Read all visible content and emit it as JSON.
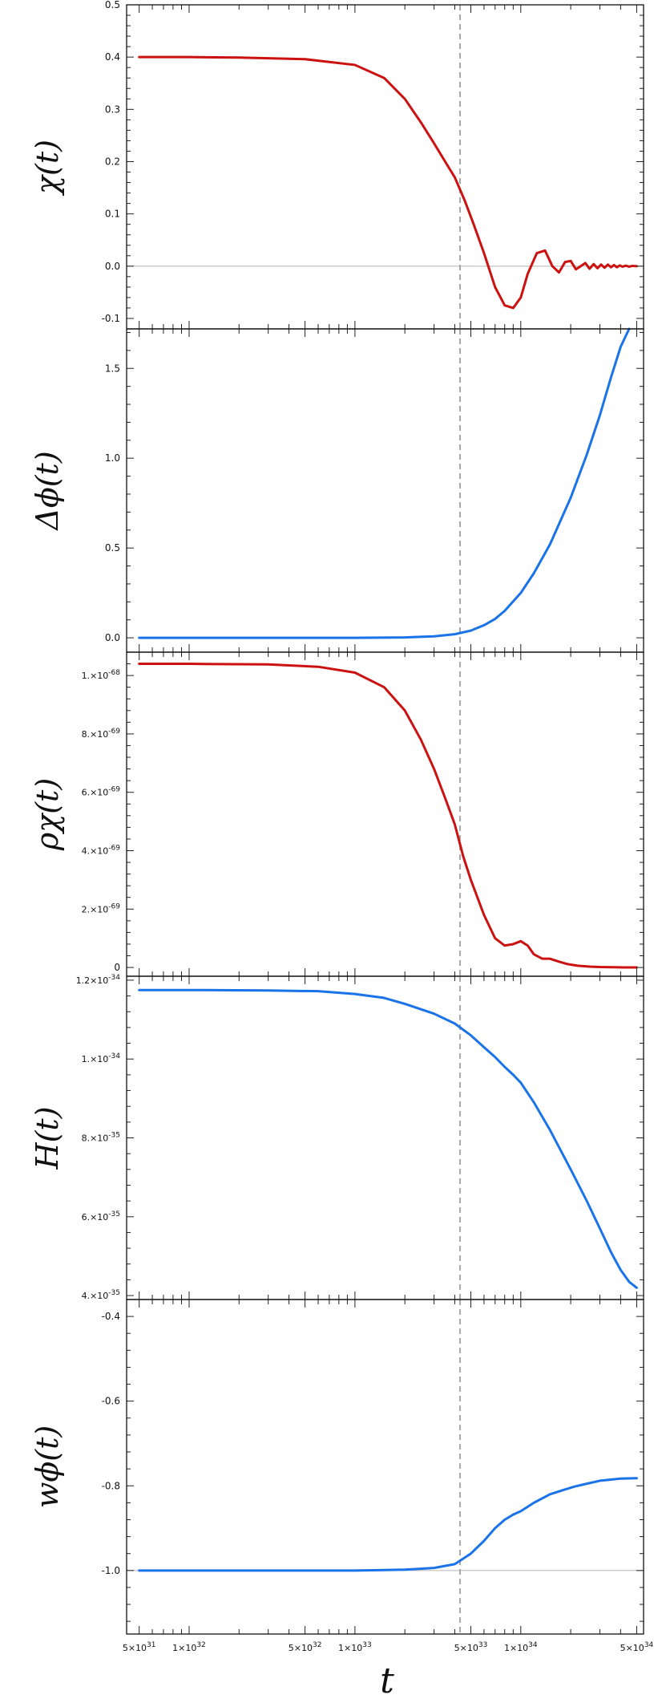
{
  "chart_data": [
    {
      "type": "line",
      "ylabel": "χ(t)",
      "xscale": "log",
      "xlim": [
        4.2e+31,
        5.5e+34
      ],
      "ylim": [
        -0.12,
        0.5
      ],
      "yticks": [
        {
          "v": -0.1,
          "label": "-0.1"
        },
        {
          "v": 0.0,
          "label": "0.0"
        },
        {
          "v": 0.1,
          "label": "0.1"
        },
        {
          "v": 0.2,
          "label": "0.2"
        },
        {
          "v": 0.3,
          "label": "0.3"
        },
        {
          "v": 0.4,
          "label": "0.4"
        },
        {
          "v": 0.5,
          "label": "0.5"
        }
      ],
      "hline": 0.0,
      "color": "#cc1111",
      "series": [
        {
          "x": [
            5e+31,
            1e+32,
            2e+32,
            5e+32,
            1e+33,
            1.5e+33,
            2e+33,
            2.5e+33,
            3e+33,
            3.5e+33,
            4e+33,
            4.6e+33,
            5.2e+33,
            6e+33,
            7e+33,
            8e+33,
            9e+33,
            1e+34,
            1.1e+34,
            1.25e+34,
            1.4e+34,
            1.55e+34,
            1.7e+34,
            1.85e+34,
            2e+34,
            2.15e+34,
            2.3e+34,
            2.45e+34,
            2.6e+34,
            2.75e+34,
            2.9e+34,
            3.05e+34,
            3.2e+34,
            3.35e+34,
            3.5e+34,
            3.65e+34,
            3.8e+34,
            3.95e+34,
            4.1e+34,
            4.3e+34,
            4.5e+34,
            4.7e+34,
            5e+34
          ],
          "y": [
            0.4,
            0.4,
            0.399,
            0.396,
            0.385,
            0.36,
            0.32,
            0.275,
            0.235,
            0.2,
            0.17,
            0.125,
            0.08,
            0.025,
            -0.04,
            -0.075,
            -0.08,
            -0.06,
            -0.015,
            0.025,
            0.03,
            0.0,
            -0.012,
            0.008,
            0.01,
            -0.006,
            0.0,
            0.006,
            -0.005,
            0.004,
            -0.004,
            0.003,
            -0.003,
            0.003,
            -0.002,
            0.002,
            -0.002,
            0.0015,
            -0.001,
            0.001,
            -0.001,
            0.0005,
            0.0
          ]
        }
      ]
    },
    {
      "type": "line",
      "ylabel": "Δϕ(t)",
      "xscale": "log",
      "xlim": [
        4.2e+31,
        5.5e+34
      ],
      "ylim": [
        -0.08,
        1.72
      ],
      "yticks": [
        {
          "v": 0.0,
          "label": "0.0"
        },
        {
          "v": 0.5,
          "label": "0.5"
        },
        {
          "v": 1.0,
          "label": "1.0"
        },
        {
          "v": 1.5,
          "label": "1.5"
        }
      ],
      "color": "#1a73e8",
      "series": [
        {
          "x": [
            5e+31,
            1e+32,
            1e+33,
            2e+33,
            3e+33,
            4e+33,
            5e+33,
            6e+33,
            7e+33,
            8e+33,
            1e+34,
            1.2e+34,
            1.5e+34,
            2e+34,
            2.5e+34,
            3e+34,
            3.5e+34,
            4e+34,
            4.5e+34
          ],
          "y": [
            0.0,
            0.0,
            0.0,
            0.002,
            0.008,
            0.02,
            0.04,
            0.07,
            0.105,
            0.15,
            0.25,
            0.36,
            0.52,
            0.78,
            1.02,
            1.24,
            1.45,
            1.62,
            1.75
          ]
        }
      ]
    },
    {
      "type": "line",
      "ylabel": "ρχ(t)",
      "xscale": "log",
      "xlim": [
        4.2e+31,
        5.5e+34
      ],
      "ylim": [
        -3e-70,
        1.08e-68
      ],
      "yticks": [
        {
          "v": 0,
          "label": "0"
        },
        {
          "v": 2e-69,
          "mant": "2.",
          "exp": "-69"
        },
        {
          "v": 4e-69,
          "mant": "4.",
          "exp": "-69"
        },
        {
          "v": 6e-69,
          "mant": "6.",
          "exp": "-69"
        },
        {
          "v": 8e-69,
          "mant": "8.",
          "exp": "-69"
        },
        {
          "v": 1e-68,
          "mant": "1.",
          "exp": "-68"
        }
      ],
      "color": "#cc1111",
      "series": [
        {
          "x": [
            5e+31,
            1e+32,
            3e+32,
            6e+32,
            1e+33,
            1.5e+33,
            2e+33,
            2.5e+33,
            3e+33,
            3.5e+33,
            4e+33,
            4.5e+33,
            5e+33,
            6e+33,
            7e+33,
            8e+33,
            9e+33,
            1e+34,
            1.1e+34,
            1.2e+34,
            1.35e+34,
            1.5e+34,
            1.7e+34,
            1.9e+34,
            2.2e+34,
            2.6e+34,
            3e+34,
            3.6e+34,
            4.2e+34,
            5e+34
          ],
          "y": [
            1.04e-68,
            1.04e-68,
            1.038e-68,
            1.03e-68,
            1.01e-68,
            9.6e-69,
            8.8e-69,
            7.8e-69,
            6.8e-69,
            5.8e-69,
            4.9e-69,
            3.8e-69,
            3e-69,
            1.8e-69,
            1e-69,
            7.5e-70,
            8e-70,
            9e-70,
            7.5e-70,
            4.5e-70,
            3e-70,
            3e-70,
            2e-70,
            1.2e-70,
            6e-71,
            3e-71,
            1.5e-71,
            8e-72,
            4e-72,
            2e-72
          ]
        }
      ]
    },
    {
      "type": "line",
      "ylabel": "H(t)",
      "xscale": "log",
      "xlim": [
        4.2e+31,
        5.5e+34
      ],
      "ylim": [
        3.9e-35,
        1.21e-34
      ],
      "yticks": [
        {
          "v": 4e-35,
          "mant": "4.",
          "exp": "-35"
        },
        {
          "v": 6e-35,
          "mant": "6.",
          "exp": "-35"
        },
        {
          "v": 8e-35,
          "mant": "8.",
          "exp": "-35"
        },
        {
          "v": 1e-34,
          "mant": "1.",
          "exp": "-34"
        },
        {
          "v": 1.2e-34,
          "mant": "1.2",
          "exp": "-34"
        }
      ],
      "color": "#1a73e8",
      "series": [
        {
          "x": [
            5e+31,
            1e+32,
            3e+32,
            6e+32,
            1e+33,
            1.5e+33,
            2e+33,
            3e+33,
            4e+33,
            5e+33,
            6e+33,
            7e+33,
            8e+33,
            9e+33,
            1e+34,
            1.2e+34,
            1.5e+34,
            2e+34,
            2.5e+34,
            3e+34,
            3.5e+34,
            4e+34,
            4.5e+34,
            5e+34
          ],
          "y": [
            1.175e-34,
            1.175e-34,
            1.174e-34,
            1.172e-34,
            1.165e-34,
            1.155e-34,
            1.14e-34,
            1.115e-34,
            1.09e-34,
            1.06e-34,
            1.03e-34,
            1.005e-34,
            9.8e-35,
            9.6e-35,
            9.4e-35,
            8.9e-35,
            8.2e-35,
            7.2e-35,
            6.4e-35,
            5.7e-35,
            5.1e-35,
            4.65e-35,
            4.35e-35,
            4.2e-35
          ]
        }
      ]
    },
    {
      "type": "line",
      "ylabel": "wϕ(t)",
      "xscale": "log",
      "xlim": [
        4.2e+31,
        5.5e+34
      ],
      "ylim": [
        -1.15,
        -0.36
      ],
      "yticks": [
        {
          "v": -1.0,
          "label": "-1.0"
        },
        {
          "v": -0.8,
          "label": "-0.8"
        },
        {
          "v": -0.6,
          "label": "-0.6"
        },
        {
          "v": -0.4,
          "label": "-0.4"
        }
      ],
      "hline": -1.0,
      "color": "#1a73e8",
      "series": [
        {
          "x": [
            5e+31,
            1e+32,
            3e+32,
            6e+32,
            1e+33,
            1.5e+33,
            2e+33,
            3e+33,
            4e+33,
            5e+33,
            6e+33,
            7e+33,
            8e+33,
            9e+33,
            1e+34,
            1.2e+34,
            1.5e+34,
            1.8e+34,
            2.1e+34,
            2.5e+34,
            3e+34,
            4e+34,
            5e+34
          ],
          "y": [
            -1.0,
            -1.0,
            -1.0,
            -1.0,
            -1.0,
            -0.999,
            -0.998,
            -0.994,
            -0.985,
            -0.96,
            -0.93,
            -0.9,
            -0.88,
            -0.868,
            -0.86,
            -0.84,
            -0.82,
            -0.81,
            -0.802,
            -0.795,
            -0.788,
            -0.783,
            -0.782
          ]
        }
      ]
    }
  ],
  "x_axis": {
    "label": "t",
    "vline": 4.3e+33,
    "ticks": [
      {
        "v": 5e+31,
        "mant": "5",
        "exp": "31"
      },
      {
        "v": 1e+32,
        "mant": "1",
        "exp": "32"
      },
      {
        "v": 5e+32,
        "mant": "5",
        "exp": "32"
      },
      {
        "v": 1e+33,
        "mant": "1",
        "exp": "33"
      },
      {
        "v": 5e+33,
        "mant": "5",
        "exp": "33"
      },
      {
        "v": 1e+34,
        "mant": "1",
        "exp": "34"
      },
      {
        "v": 5e+34,
        "mant": "5",
        "exp": "34"
      }
    ]
  }
}
